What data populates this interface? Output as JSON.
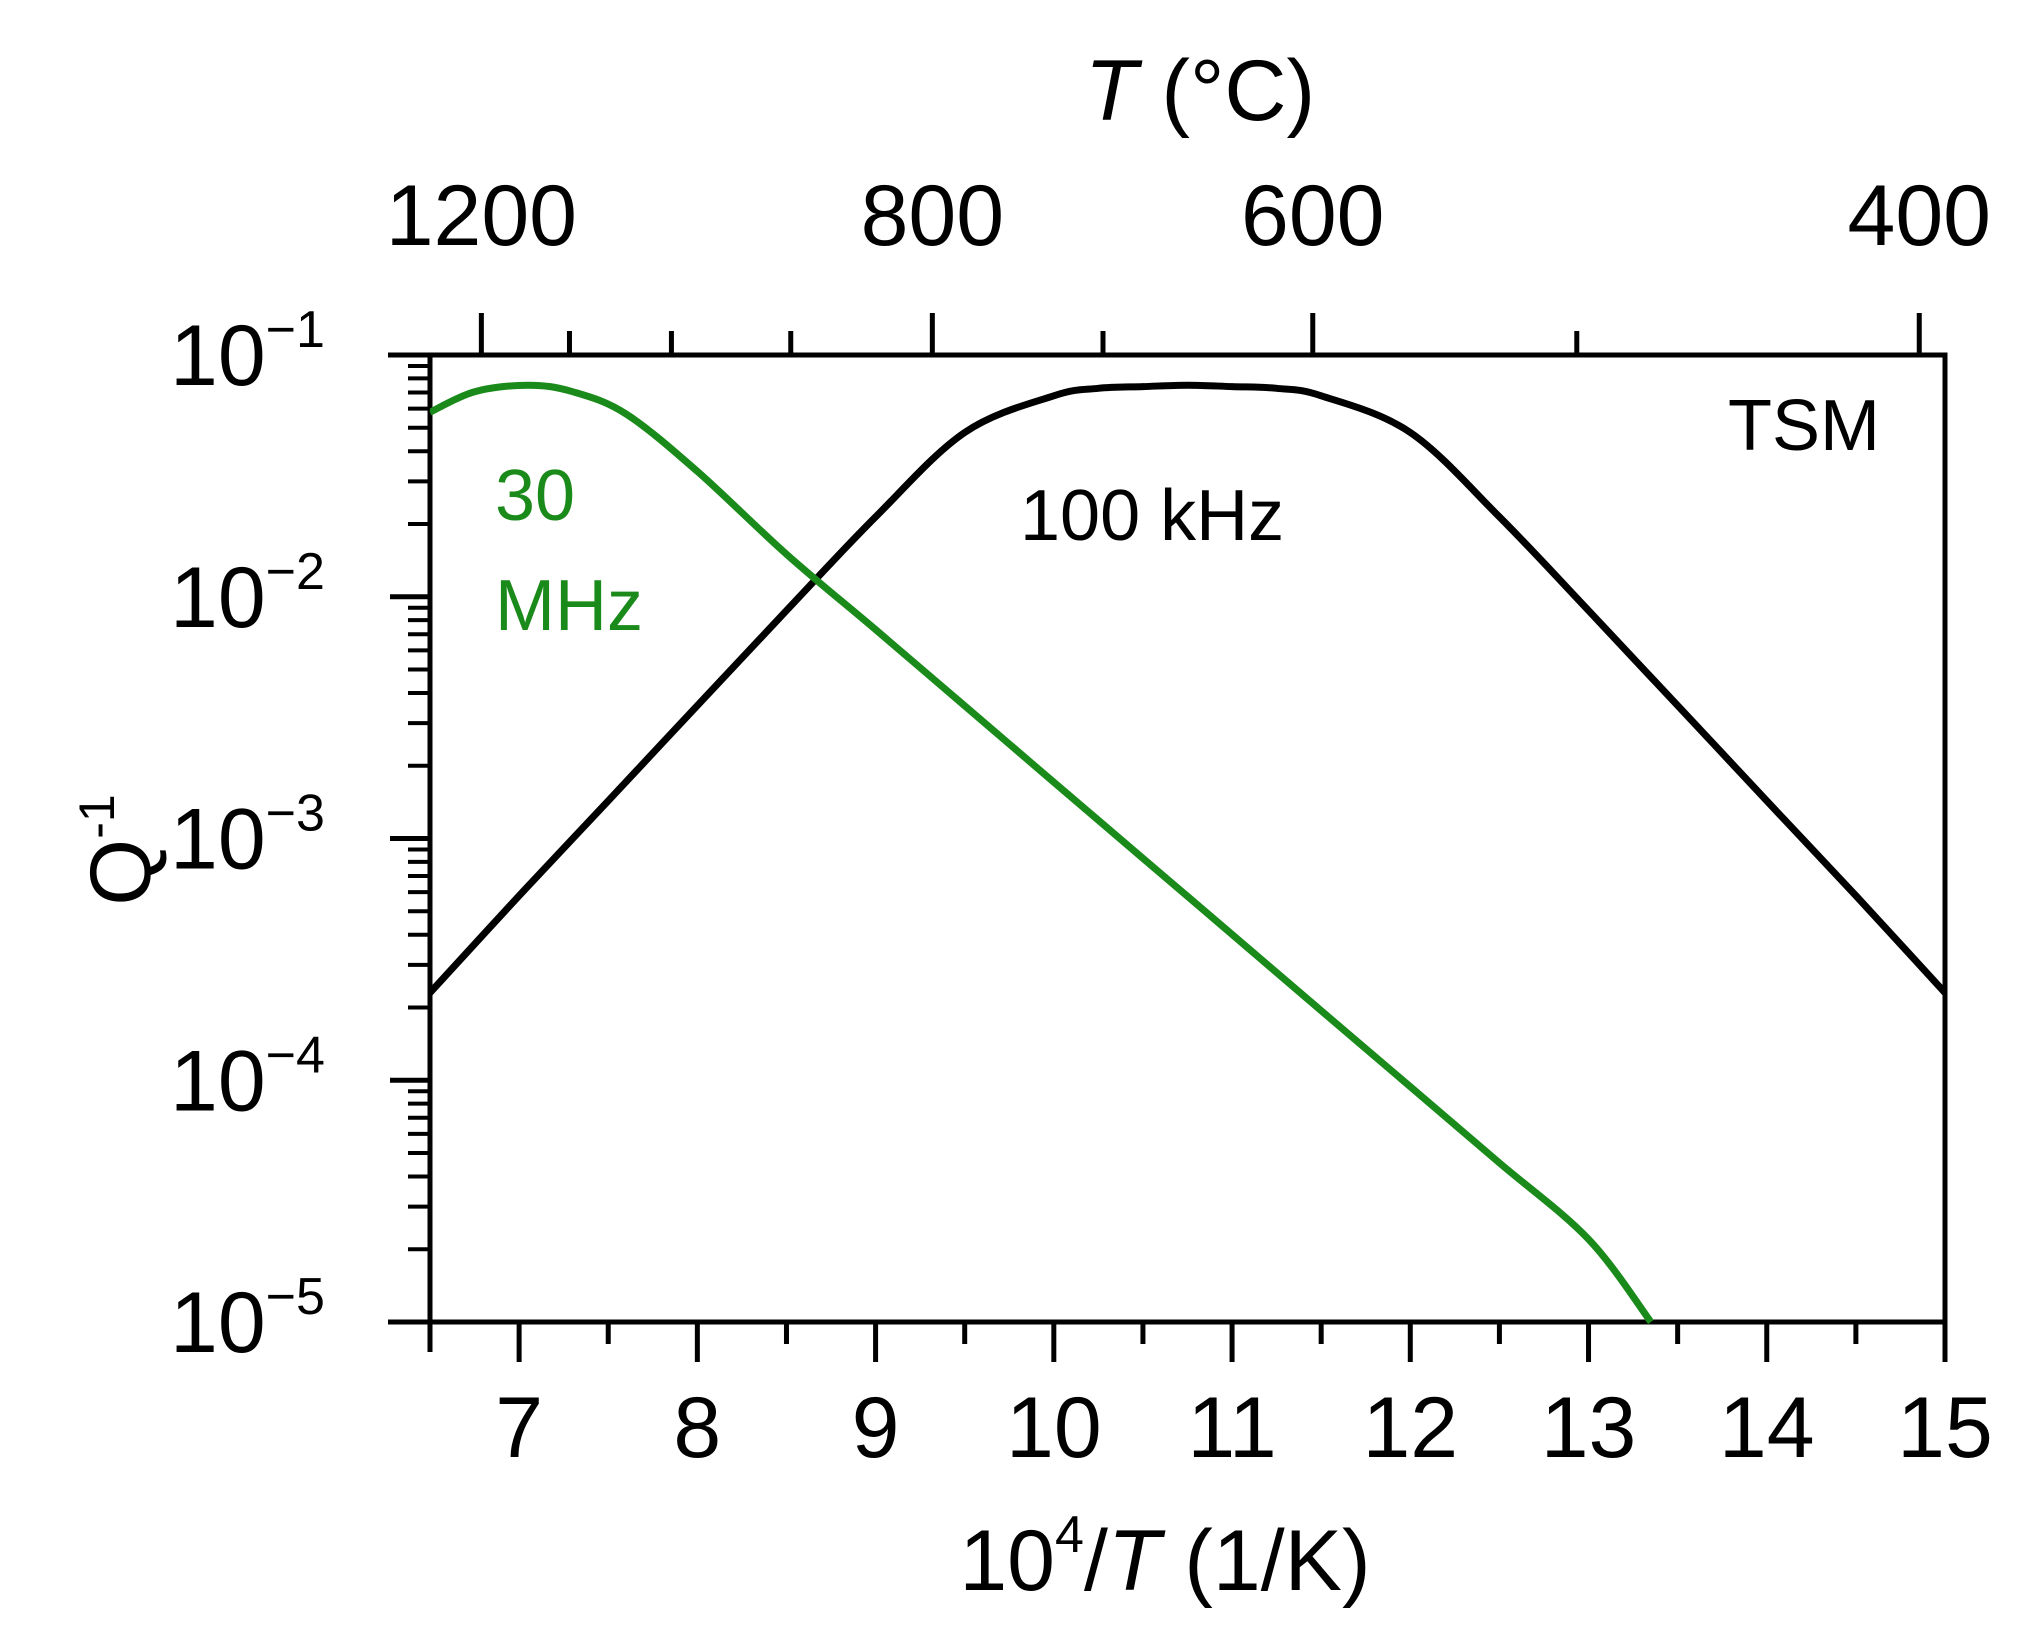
{
  "chart_data": {
    "type": "line",
    "title": "",
    "xlabel": {
      "base": "10",
      "exp": "4",
      "slash": "/",
      "var": "T",
      "unit": " (1/K)"
    },
    "ylabel": {
      "base": "Q",
      "exp": "-1"
    },
    "top_axis_label": {
      "var": "T",
      "unit": " (°C)"
    },
    "xlim": [
      6.5,
      15
    ],
    "ylim": [
      1e-05,
      0.1
    ],
    "y_scale": "log",
    "x_ticks": [
      7,
      8,
      9,
      10,
      11,
      12,
      13,
      14,
      15
    ],
    "x_tick_labels": [
      "7",
      "8",
      "9",
      "10",
      "11",
      "12",
      "13",
      "14",
      "15"
    ],
    "y_ticks": [
      0.1,
      0.01,
      0.001,
      0.0001,
      1e-05
    ],
    "y_tick_labels": [
      {
        "base": "10",
        "exp": "−1"
      },
      {
        "base": "10",
        "exp": "−2"
      },
      {
        "base": "10",
        "exp": "−3"
      },
      {
        "base": "10",
        "exp": "−4"
      },
      {
        "base": "10",
        "exp": "−5"
      }
    ],
    "top_ticks_celsius": [
      1200,
      800,
      600,
      400
    ],
    "top_tick_labels": [
      "1200",
      "800",
      "600",
      "400"
    ],
    "top_minor_ticks_celsius": [
      1100,
      1000,
      900,
      700,
      500
    ],
    "corner_label": "TSM",
    "series": [
      {
        "name": "100 kHz",
        "label_lines": [
          "100 kHz"
        ],
        "color": "#000000",
        "peak_x": 10.75,
        "peak_y": 0.075,
        "x": [
          6.5,
          7.0,
          7.5,
          8.0,
          8.5,
          9.0,
          9.5,
          10.0,
          10.25,
          10.5,
          10.75,
          11.0,
          11.25,
          11.5,
          12.0,
          12.5,
          13.0,
          13.5,
          14.0,
          14.5,
          15.0
        ],
        "y": [
          0.00023,
          0.00058,
          0.00143,
          0.00355,
          0.00877,
          0.0214,
          0.0478,
          0.0678,
          0.0728,
          0.074,
          0.075,
          0.074,
          0.0728,
          0.0678,
          0.0478,
          0.0214,
          0.00877,
          0.00355,
          0.00143,
          0.00058,
          0.00023
        ]
      },
      {
        "name": "30 MHz",
        "label_lines": [
          "30",
          "MHz"
        ],
        "color": "#1a8a1a",
        "peak_x": 7.05,
        "peak_y": 0.075,
        "x": [
          6.5,
          6.75,
          7.05,
          7.3,
          7.6,
          8.0,
          8.5,
          9.0,
          9.5,
          10.0,
          10.5,
          11.0,
          11.5,
          12.0,
          12.5,
          13.0,
          13.35
        ],
        "y": [
          0.058,
          0.0705,
          0.075,
          0.0705,
          0.057,
          0.033,
          0.015,
          0.00731,
          0.00354,
          0.00171,
          0.000828,
          0.000401,
          0.000194,
          9.4e-05,
          4.55e-05,
          2.2e-05,
          1e-05
        ]
      }
    ]
  }
}
